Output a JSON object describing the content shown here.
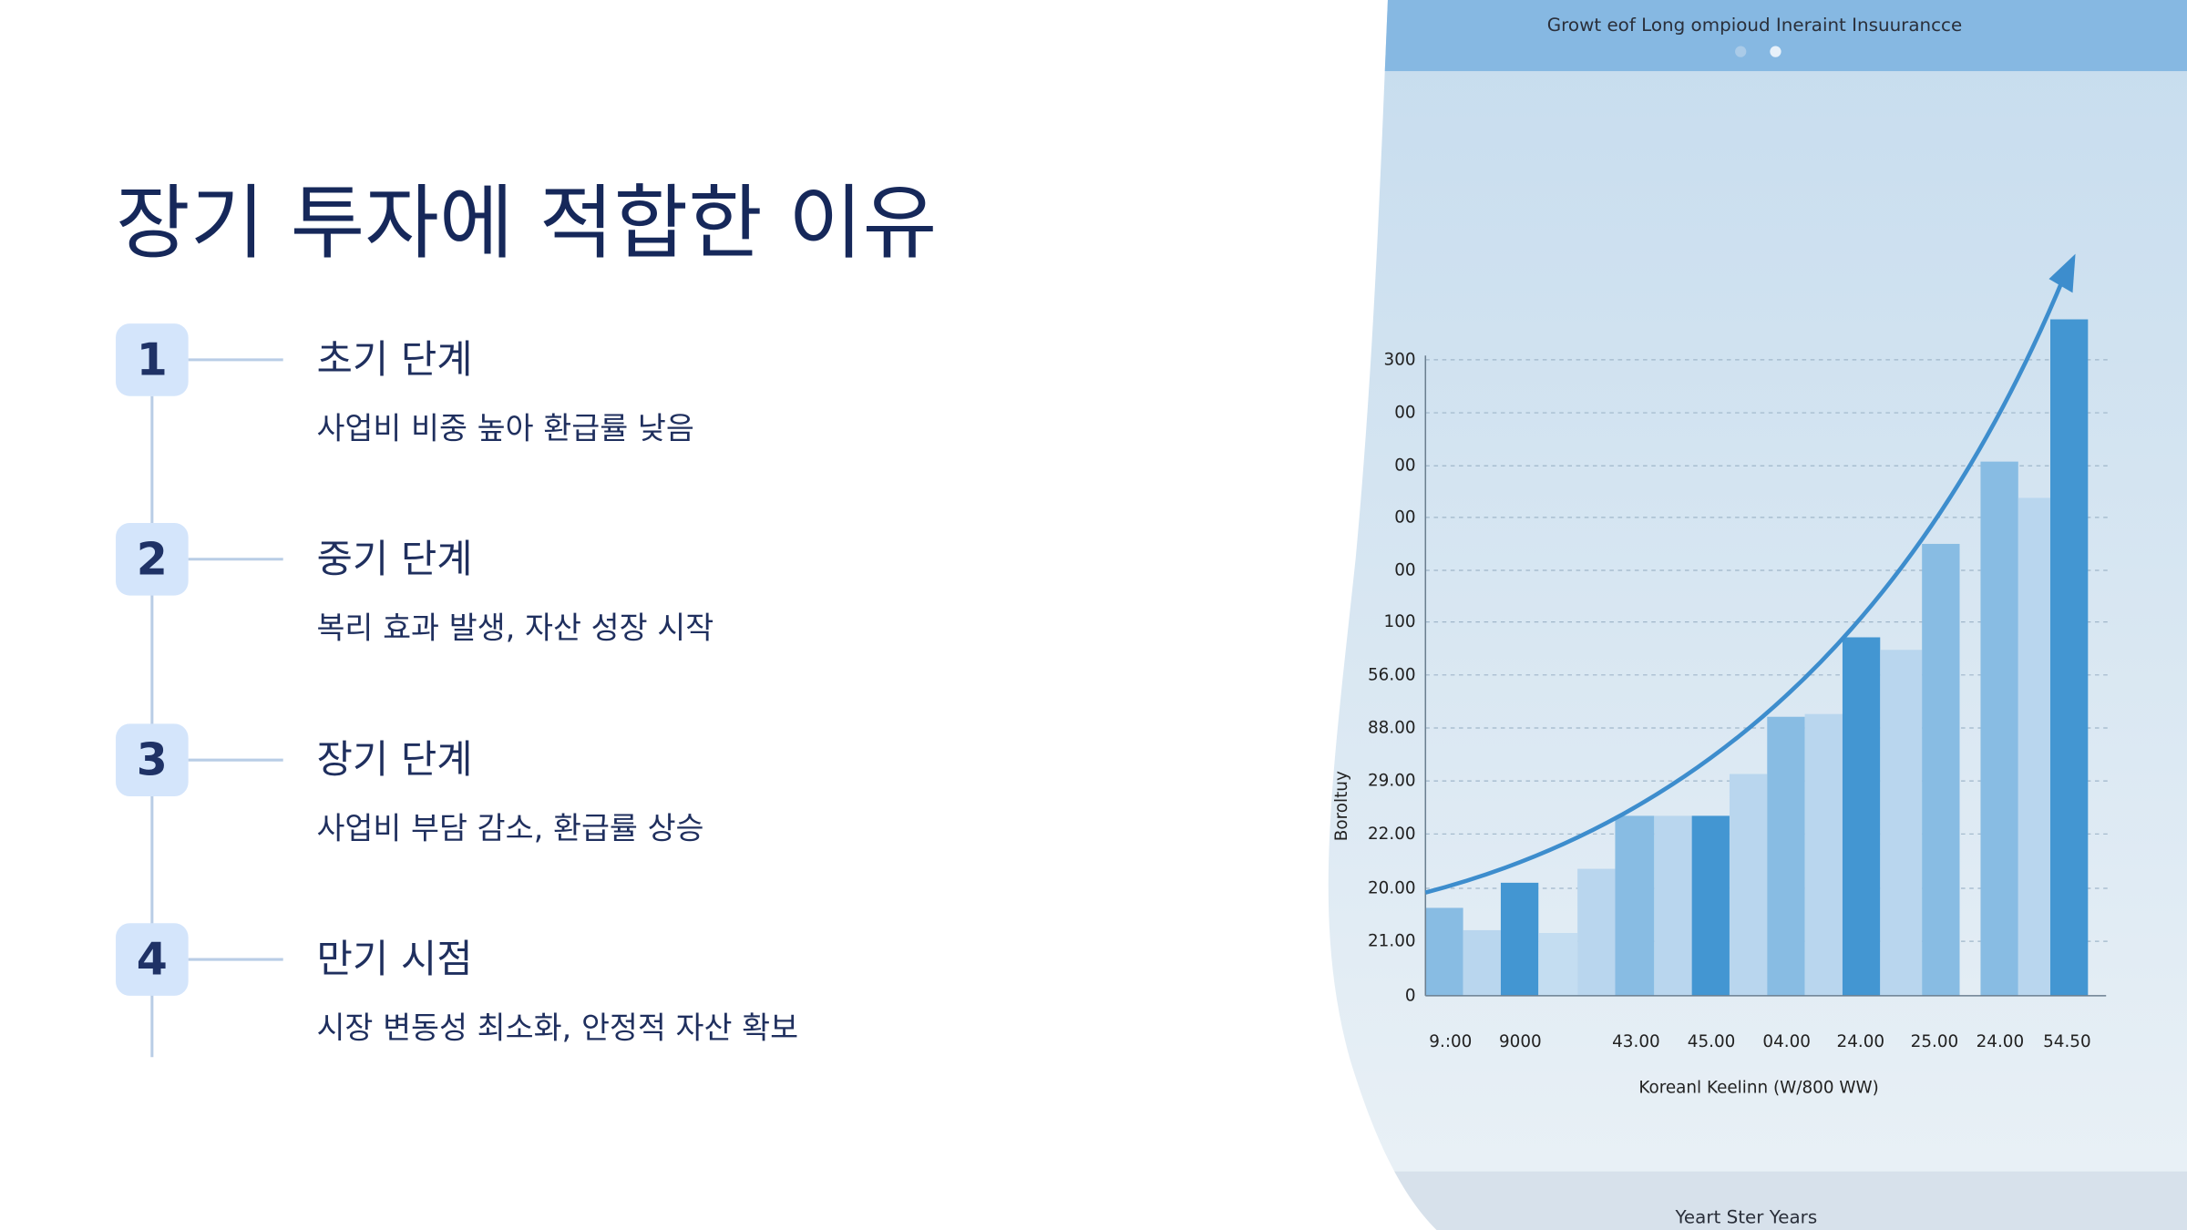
{
  "slide": {
    "title": "장기 투자에 적합한 이유",
    "steps": [
      {
        "number": "1",
        "heading": "초기 단계",
        "description": "사업비 비중 높아 환급률 낮음"
      },
      {
        "number": "2",
        "heading": "중기 단계",
        "description": "복리 효과 발생, 자산 성장 시작"
      },
      {
        "number": "3",
        "heading": "장기 단계",
        "description": "사업비 부담 감소, 환급률 상승"
      },
      {
        "number": "4",
        "heading": "만기 시점",
        "description": "시장 변동성 최소화, 안정적 자산 확보"
      }
    ],
    "image": {
      "title": "Growt eof Long ompioud Ineraint Insuurancce",
      "y_labels": [
        "300",
        "00",
        "00",
        "00",
        "00",
        "100",
        "56.00",
        "88.00",
        "29.00",
        "22.00",
        "20.00",
        "21.00",
        "0"
      ],
      "x_labels": [
        "9.:00",
        "9000",
        "43.00",
        "45.00",
        "04.00",
        "24.00",
        "25.00",
        "24.00",
        "54.50"
      ],
      "x_title": "Koreanl Keelinn (W/800 WW)",
      "y_title": "Boroltuy",
      "footer": "Yeart Ster Years"
    }
  }
}
